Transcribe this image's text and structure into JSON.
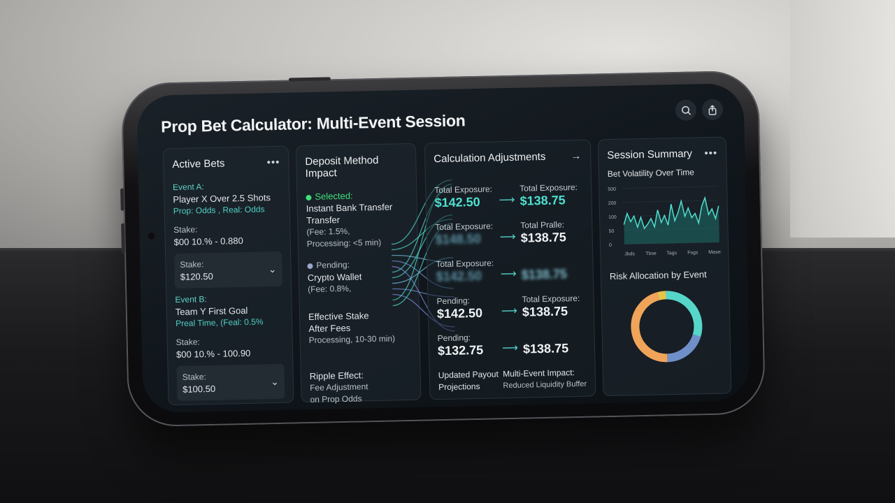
{
  "app": {
    "title": "Prop Bet Calculator: Multi-Event Session"
  },
  "icons": {
    "search": "search-icon",
    "share": "share-icon"
  },
  "active_bets": {
    "title": "Active Bets",
    "menu": "•••",
    "event_a": {
      "label": "Event A:",
      "name": "Player X Over 2.5 Shots",
      "odds": "Prop: Odds , Real: Odds",
      "stake_label": "Stake:",
      "stake_calc": "$00 10.% - 0.880",
      "stake_box_label": "Stake:",
      "stake_box_value": "$120.50"
    },
    "event_b": {
      "label": "Event B:",
      "name": "Team Y First Goal",
      "odds": "Preal Time, (Feal: 0.5%",
      "stake_label": "Stake:",
      "stake_calc": "$00 10.% - 100.90",
      "stake_box_label": "Stake:",
      "stake_box_value": "$100.50"
    }
  },
  "deposit": {
    "title": "Deposit Method Impact",
    "selected_label": "Selected:",
    "selected_method_1": "Instant Bank Transfer",
    "selected_method_2": "Transfer",
    "selected_fee": "(Fee: 1.5%,",
    "selected_processing": "Processing: <5 min)",
    "pending_label": "Pending:",
    "pending_method": "Crypto Wallet",
    "pending_fee": "(Fee: 0.8%,",
    "effective_1": "Effective Stake",
    "effective_2": "After Fees",
    "effective_processing": "Processing, 10-30 min)",
    "ripple_title": "Ripple Effect:",
    "ripple_1": "Fee Adjustment",
    "ripple_2": "on Prop Odds"
  },
  "adjustments": {
    "title": "Calculation Adjustments",
    "rows": [
      {
        "left_label": "Total Exposure:",
        "left_value": "$142.50",
        "right_label": "Total Exposure:",
        "right_value": "$138.75"
      },
      {
        "left_label": "Total Exposure:",
        "left_value": "$148.50",
        "right_label": "Total Pralle:",
        "right_value": "$138.75"
      },
      {
        "left_label": "Total Exposure:",
        "left_value": "$142.50",
        "right_label": "",
        "right_value": "$138.75"
      },
      {
        "left_label": "Pending:",
        "left_value": "$142.50",
        "right_label": "Total Exposure:",
        "right_value": "$138.75"
      },
      {
        "left_label": "Pending:",
        "left_value": "$132.75",
        "right_label": "",
        "right_value": "$138.75"
      }
    ],
    "footer_left_1": "Updated Payout",
    "footer_left_2": "Projections",
    "footer_right_1": "Multi-Event Impact:",
    "footer_right_2": "Reduced Liquidity Buffer"
  },
  "summary": {
    "title": "Session Summary",
    "menu": "•••",
    "volatility_title": "Bet Volatility Over Time",
    "risk_title": "Risk Allocation by Event"
  },
  "chart_data": [
    {
      "type": "area",
      "title": "Bet Volatility Over Time",
      "y_ticks": [
        "500",
        "200",
        "100",
        "50",
        "0"
      ],
      "x_ticks": [
        "Jbds",
        "Tbse",
        "Tags",
        "Fsgs",
        "Mases"
      ],
      "values": [
        70,
        110,
        80,
        100,
        60,
        95,
        55,
        70,
        90,
        60,
        120,
        75,
        100,
        65,
        140,
        80,
        110,
        150,
        95,
        125,
        90,
        105,
        70,
        130,
        160,
        100,
        120,
        85,
        130
      ]
    },
    {
      "type": "pie",
      "title": "Risk Allocation by Event",
      "slices": [
        {
          "value": 30,
          "color": "#55d6c9"
        },
        {
          "value": 20,
          "color": "#6f8fc8"
        },
        {
          "value": 46,
          "color": "#f0a45a"
        },
        {
          "value": 4,
          "color": "#e8c24a"
        }
      ]
    }
  ]
}
